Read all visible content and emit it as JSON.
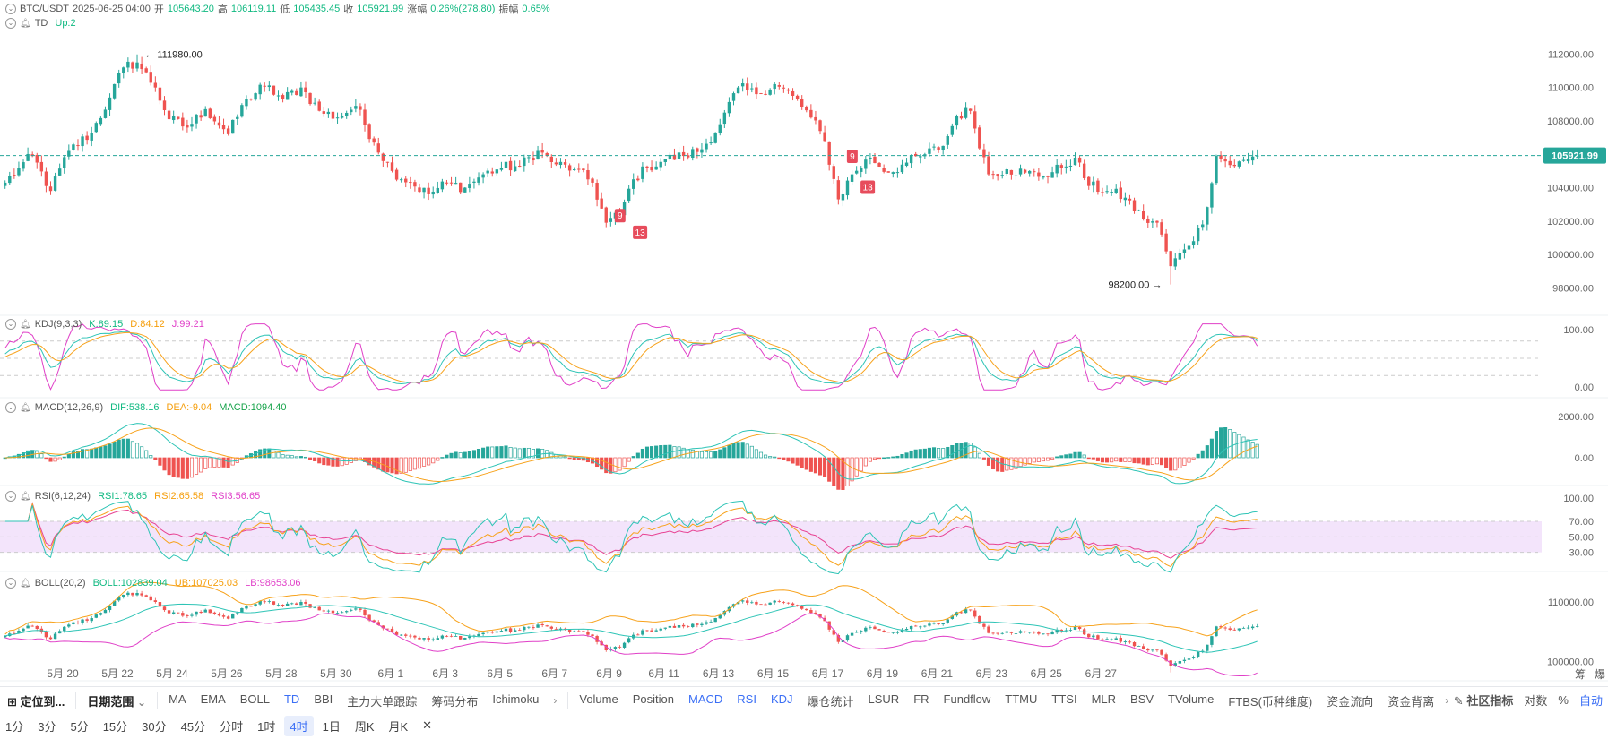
{
  "header": {
    "symbol": "BTC/USDT",
    "datetime": "2025-06-25 04:00",
    "open_label": "开",
    "open": "105643.20",
    "high_label": "高",
    "high": "106119.11",
    "low_label": "低",
    "low": "105435.45",
    "close_label": "收",
    "close": "105921.99",
    "change_label": "涨幅",
    "change": "0.26%(278.80)",
    "amplitude_label": "振幅",
    "amplitude": "0.65%"
  },
  "td": {
    "name": "TD",
    "value": "Up:2"
  },
  "kdj": {
    "name": "KDJ(9,3,3)",
    "k": "K:89.15",
    "d": "D:84.12",
    "j": "J:99.21"
  },
  "macd": {
    "name": "MACD(12,26,9)",
    "dif": "DIF:538.16",
    "dea": "DEA:-9.04",
    "macd": "MACD:1094.40"
  },
  "rsi": {
    "name": "RSI(6,12,24)",
    "rsi1": "RSI1:78.65",
    "rsi2": "RSI2:65.58",
    "rsi3": "RSI3:56.65"
  },
  "boll": {
    "name": "BOLL(20,2)",
    "boll": "BOLL:102839.04",
    "ub": "UB:107025.03",
    "lb": "LB:98653.06"
  },
  "colors": {
    "up": "#26a69a",
    "down": "#ef5350",
    "dif": "#2ec4b6",
    "dea": "#f7a21b",
    "j": "#e040c8"
  },
  "chart_data": {
    "type": "candlestick",
    "interval": "4时",
    "last_price_label": "105921.99",
    "max_label": "111980.00",
    "min_label": "98200.00",
    "price_ticks": [
      "112000.00",
      "110000.00",
      "108000.00",
      "106000.00",
      "104000.00",
      "102000.00",
      "100000.00",
      "98000.00"
    ],
    "kdj_ticks": [
      "100.00",
      "0.00"
    ],
    "macd_ticks": [
      "2000.00",
      "0.00"
    ],
    "rsi_ticks": [
      "100.00",
      "70.00",
      "50.00",
      "30.00"
    ],
    "boll_ticks": [
      "110000.00",
      "100000.00"
    ],
    "x_ticks": [
      "5月 20",
      "5月 22",
      "5月 24",
      "5月 26",
      "5月 28",
      "5月 30",
      "6月 1",
      "6月 3",
      "6月 5",
      "6月 7",
      "6月 9",
      "6月 11",
      "6月 13",
      "6月 15",
      "6月 17",
      "6月 19",
      "6月 21",
      "6月 23",
      "6月 25",
      "6月 27"
    ],
    "price_ylim": [
      97000,
      113200
    ],
    "close_anchors": [
      [
        0,
        104300
      ],
      [
        3,
        105200
      ],
      [
        6,
        105900
      ],
      [
        10,
        103800
      ],
      [
        14,
        106200
      ],
      [
        19,
        107300
      ],
      [
        23,
        109400
      ],
      [
        26,
        111200
      ],
      [
        29,
        111500
      ],
      [
        33,
        110000
      ],
      [
        36,
        108100
      ],
      [
        40,
        107600
      ],
      [
        44,
        108700
      ],
      [
        49,
        107200
      ],
      [
        53,
        109300
      ],
      [
        57,
        110100
      ],
      [
        61,
        109300
      ],
      [
        65,
        110000
      ],
      [
        69,
        108600
      ],
      [
        73,
        108200
      ],
      [
        77,
        108900
      ],
      [
        81,
        106700
      ],
      [
        85,
        105000
      ],
      [
        89,
        104300
      ],
      [
        93,
        103600
      ],
      [
        97,
        104300
      ],
      [
        101,
        104000
      ],
      [
        105,
        104800
      ],
      [
        109,
        105200
      ],
      [
        113,
        105300
      ],
      [
        117,
        106200
      ],
      [
        121,
        105400
      ],
      [
        125,
        105100
      ],
      [
        129,
        104300
      ],
      [
        132,
        101900
      ],
      [
        135,
        102400
      ],
      [
        138,
        104500
      ],
      [
        141,
        105200
      ],
      [
        145,
        105700
      ],
      [
        149,
        105900
      ],
      [
        153,
        106300
      ],
      [
        157,
        107800
      ],
      [
        161,
        110000
      ],
      [
        165,
        109600
      ],
      [
        169,
        110200
      ],
      [
        173,
        109500
      ],
      [
        177,
        108200
      ],
      [
        180,
        106800
      ],
      [
        183,
        103300
      ],
      [
        186,
        104800
      ],
      [
        190,
        105800
      ],
      [
        194,
        104900
      ],
      [
        198,
        105500
      ],
      [
        202,
        106000
      ],
      [
        206,
        106500
      ],
      [
        209,
        108300
      ],
      [
        212,
        108600
      ],
      [
        216,
        104800
      ],
      [
        220,
        105100
      ],
      [
        224,
        104900
      ],
      [
        228,
        104700
      ],
      [
        232,
        105200
      ],
      [
        235,
        105800
      ],
      [
        238,
        104100
      ],
      [
        242,
        103800
      ],
      [
        246,
        103400
      ],
      [
        250,
        102100
      ],
      [
        253,
        101900
      ],
      [
        256,
        99300
      ],
      [
        259,
        100300
      ],
      [
        263,
        101800
      ],
      [
        266,
        105900
      ],
      [
        270,
        105300
      ],
      [
        273,
        105700
      ],
      [
        275,
        105922
      ]
    ]
  },
  "toolbar": {
    "locate": "定位到...",
    "date_range": "日期范围",
    "main_indicators": [
      "MA",
      "EMA",
      "BOLL",
      "TD",
      "BBI",
      "主力大单跟踪",
      "筹码分布",
      "Ichimoku"
    ],
    "sub_indicators": [
      "Volume",
      "Position",
      "MACD",
      "RSI",
      "KDJ",
      "爆仓统计",
      "LSUR",
      "FR",
      "Fundflow",
      "TTMU",
      "TTSI",
      "MLR",
      "BSV",
      "TVolume",
      "FTBS(币种维度)",
      "资金流向",
      "资金背离"
    ],
    "community": "社区指标",
    "log": "对数",
    "percent": "%",
    "auto": "自动",
    "right_a": "筹",
    "right_b": "爆"
  },
  "intervals": [
    "1分",
    "3分",
    "5分",
    "15分",
    "30分",
    "45分",
    "分时",
    "1时",
    "4时",
    "1日",
    "周K",
    "月K"
  ],
  "interval_close": "✕"
}
